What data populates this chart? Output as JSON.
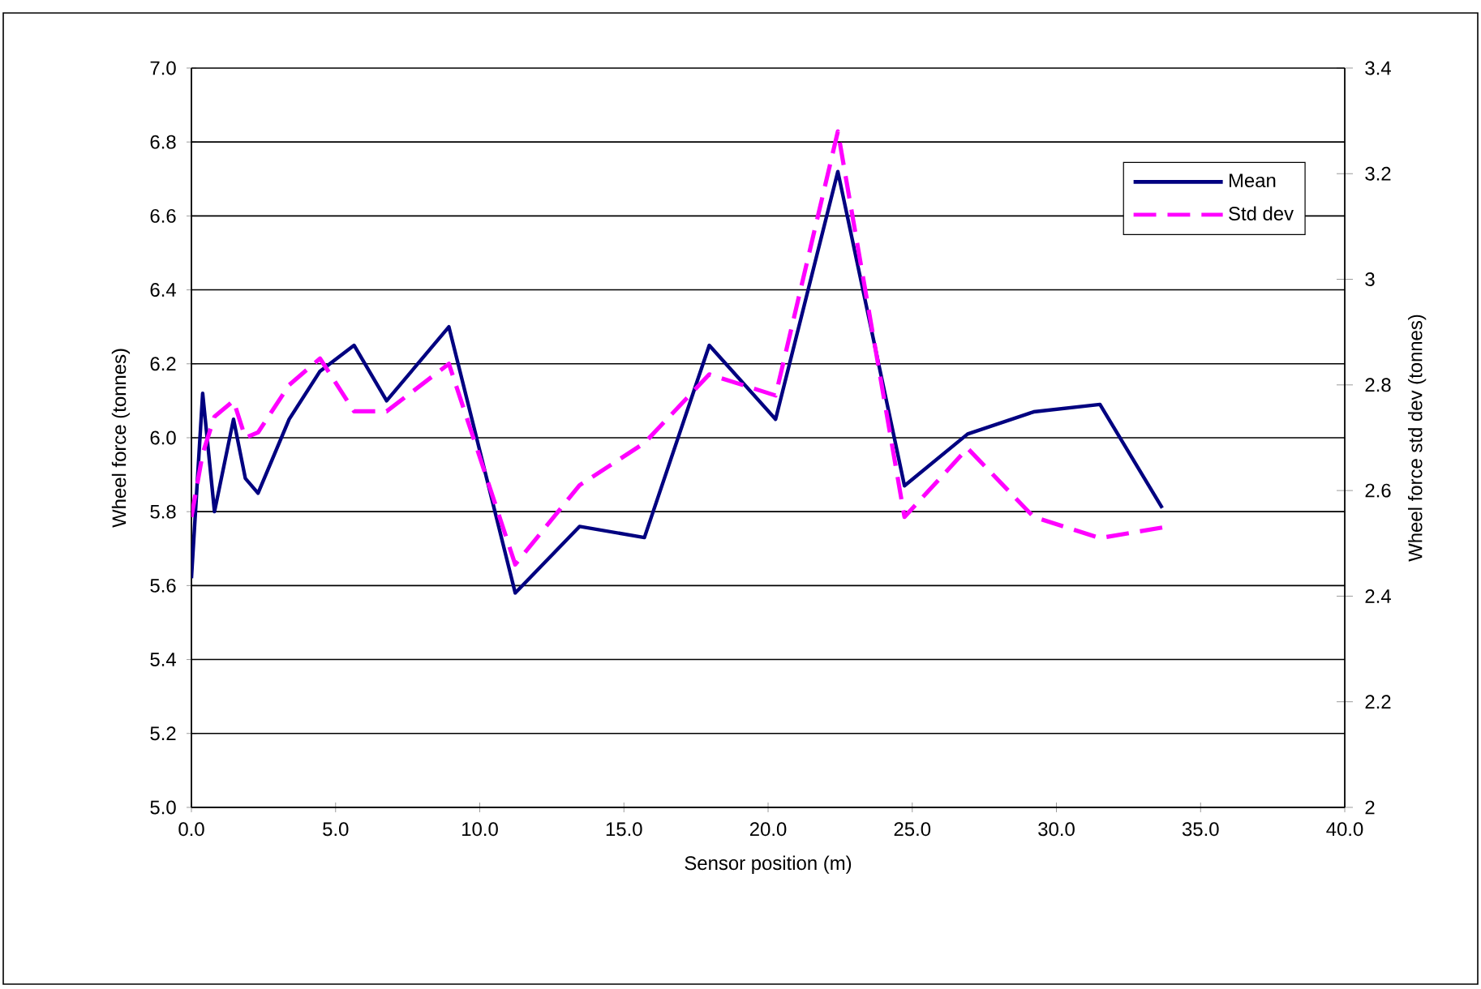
{
  "chart_data": {
    "type": "line",
    "xlabel": "Sensor position (m)",
    "ylabel": "Wheel force (tonnes)",
    "y2label": "Wheel force std dev (tonnes)",
    "x": [
      0,
      0.39,
      0.8,
      1.46,
      1.87,
      2.31,
      3.39,
      4.46,
      5.64,
      6.77,
      8.93,
      11.23,
      13.46,
      15.71,
      17.96,
      20.26,
      22.42,
      24.73,
      26.92,
      29.21,
      31.51,
      33.67
    ],
    "series": [
      {
        "name": "Mean",
        "color": "#000080",
        "line_style": "solid",
        "values": [
          5.62,
          6.12,
          5.8,
          6.05,
          5.89,
          5.85,
          6.05,
          6.18,
          6.25,
          6.1,
          6.3,
          5.58,
          5.76,
          5.73,
          6.25,
          6.05,
          6.72,
          5.87,
          6.01,
          6.07,
          6.09,
          5.81
        ]
      },
      {
        "name": "Std dev",
        "color": "#ff00ff",
        "line_style": "dashed",
        "axis": "y2",
        "values": [
          2.55,
          2.67,
          2.74,
          2.77,
          2.7,
          2.71,
          2.8,
          2.85,
          2.75,
          2.75,
          2.84,
          2.46,
          2.61,
          2.69,
          2.82,
          2.78,
          3.28,
          2.55,
          2.68,
          2.55,
          2.51,
          2.53
        ]
      }
    ],
    "xlim": [
      0,
      40
    ],
    "xticks": [
      {
        "value": 0,
        "label": "0.0"
      },
      {
        "value": 5,
        "label": "5.0"
      },
      {
        "value": 10,
        "label": "10.0"
      },
      {
        "value": 15,
        "label": "15.0"
      },
      {
        "value": 20,
        "label": "20.0"
      },
      {
        "value": 25,
        "label": "25.0"
      },
      {
        "value": 30,
        "label": "30.0"
      },
      {
        "value": 35,
        "label": "35.0"
      },
      {
        "value": 40,
        "label": "40.0"
      }
    ],
    "ylim": [
      5,
      7
    ],
    "yticks": [
      {
        "value": 5,
        "label": "5.0"
      },
      {
        "value": 5.2,
        "label": "5.2"
      },
      {
        "value": 5.4,
        "label": "5.4"
      },
      {
        "value": 5.6,
        "label": "5.6"
      },
      {
        "value": 5.8,
        "label": "5.8"
      },
      {
        "value": 6,
        "label": "6.0"
      },
      {
        "value": 6.2,
        "label": "6.2"
      },
      {
        "value": 6.4,
        "label": "6.4"
      },
      {
        "value": 6.6,
        "label": "6.6"
      },
      {
        "value": 6.8,
        "label": "6.8"
      },
      {
        "value": 7,
        "label": "7.0"
      }
    ],
    "y2lim": [
      2,
      3.4
    ],
    "y2ticks": [
      {
        "value": 2,
        "label": "2"
      },
      {
        "value": 2.2,
        "label": "2.2"
      },
      {
        "value": 2.4,
        "label": "2.4"
      },
      {
        "value": 2.6,
        "label": "2.6"
      },
      {
        "value": 2.8,
        "label": "2.8"
      },
      {
        "value": 3,
        "label": "3"
      },
      {
        "value": 3.2,
        "label": "3.2"
      },
      {
        "value": 3.4,
        "label": "3.4"
      }
    ],
    "grid": "y",
    "legend": "top right",
    "marker": "none"
  }
}
